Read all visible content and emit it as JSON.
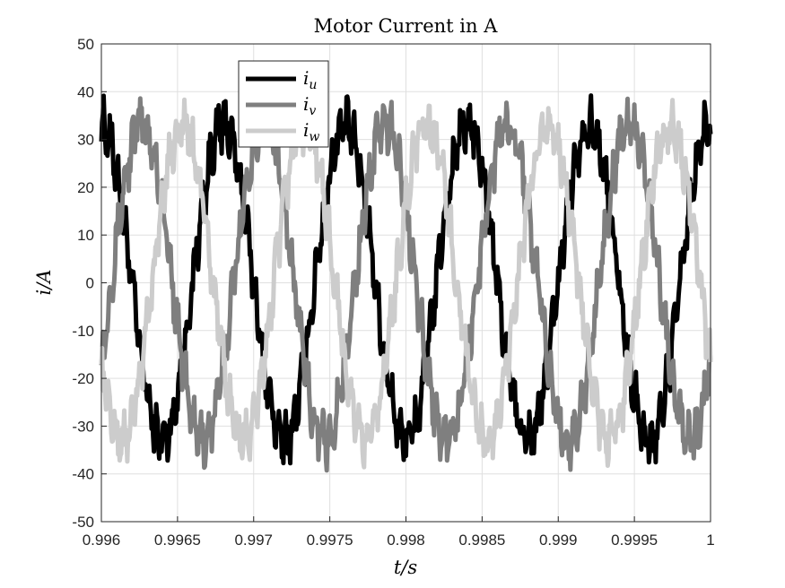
{
  "chart_data": {
    "type": "line",
    "title": "Motor Current in A",
    "xlabel": "t/s",
    "ylabel": "i/A",
    "xlim": [
      0.996,
      1.0
    ],
    "ylim": [
      -50,
      50
    ],
    "x_ticks": [
      0.996,
      0.9965,
      0.997,
      0.9975,
      0.998,
      0.9985,
      0.999,
      0.9995,
      1.0
    ],
    "x_tick_labels": [
      "0.996",
      "0.9965",
      "0.997",
      "0.9975",
      "0.998",
      "0.9985",
      "0.999",
      "0.9995",
      "1"
    ],
    "y_ticks": [
      -50,
      -40,
      -30,
      -20,
      -10,
      0,
      10,
      20,
      30,
      40,
      50
    ],
    "y_tick_labels": [
      "-50",
      "-40",
      "-30",
      "-20",
      "-10",
      "0",
      "10",
      "20",
      "30",
      "40",
      "50"
    ],
    "grid": true,
    "legend_position": "top-left",
    "frequency_hz": 1250,
    "amplitude": 33,
    "series": [
      {
        "name": "i",
        "subscript": "u",
        "color": "#000000",
        "phase_deg": 90
      },
      {
        "name": "i",
        "subscript": "v",
        "color": "#7f7f7f",
        "phase_deg": -30
      },
      {
        "name": "i",
        "subscript": "w",
        "color": "#cccccc",
        "phase_deg": 210
      }
    ]
  }
}
